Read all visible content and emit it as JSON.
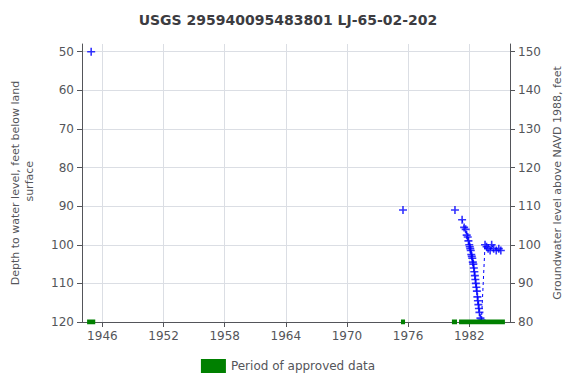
{
  "chart_data": {
    "type": "scatter",
    "title": "USGS 295940095483801 LJ-65-02-202",
    "ylabel": "Depth to water level, feet below land\n surface",
    "y2label": "Groundwater level above NAVD 1988, feet",
    "xlim": [
      1944,
      1986
    ],
    "xticks": [
      1946,
      1952,
      1958,
      1964,
      1970,
      1976,
      1982
    ],
    "ylim": [
      120,
      48
    ],
    "yticks": [
      50,
      60,
      70,
      80,
      90,
      100,
      110,
      120
    ],
    "y2lim": [
      80,
      152
    ],
    "y2ticks": [
      80,
      90,
      100,
      110,
      120,
      130,
      140,
      150
    ],
    "grid": true,
    "legend": "bottom",
    "series": [
      {
        "type": "line",
        "line_style": "dashed",
        "color": "#0000FF",
        "x": [
          1981.3,
          1981.5,
          1981.65,
          1981.75,
          1981.85,
          1981.92,
          1982.0,
          1982.05,
          1982.1,
          1982.15,
          1982.2,
          1982.25,
          1982.3,
          1982.35,
          1982.4,
          1982.45,
          1982.5,
          1982.55,
          1982.6,
          1982.65,
          1982.7,
          1982.75,
          1982.8,
          1982.85,
          1982.9,
          1982.95,
          1983.0,
          1983.1,
          1983.2,
          1983.55,
          1983.7,
          1983.85,
          1984.05,
          1984.2,
          1984.4,
          1984.65,
          1984.9,
          1985.1
        ],
        "values": [
          93.5,
          95.5,
          96.0,
          97.5,
          98.0,
          99.0,
          100.0,
          100.5,
          101.0,
          101.5,
          102.5,
          103.0,
          103.5,
          104.5,
          105.0,
          106.0,
          107.0,
          108.0,
          109.0,
          110.0,
          111.0,
          112.0,
          113.5,
          114.5,
          115.5,
          116.5,
          117.5,
          119.0,
          119.5,
          100.0,
          100.5,
          101.0,
          101.5,
          100.0,
          101.0,
          101.5,
          101.0,
          101.5
        ]
      },
      {
        "type": "scatter",
        "marker": "plus",
        "color": "#0000FF",
        "x": [
          1944.9,
          1975.5,
          1980.6,
          1981.3,
          1981.5,
          1981.65,
          1981.75,
          1981.85,
          1981.92,
          1982.0,
          1982.05,
          1982.1,
          1982.15,
          1982.2,
          1982.25,
          1982.3,
          1982.35,
          1982.4,
          1982.45,
          1982.5,
          1982.55,
          1982.6,
          1982.65,
          1982.7,
          1982.75,
          1982.8,
          1982.85,
          1982.9,
          1982.95,
          1983.0,
          1983.1,
          1983.2,
          1983.55,
          1983.7,
          1983.85,
          1984.05,
          1984.2,
          1984.4,
          1984.65,
          1984.9,
          1985.1
        ],
        "values": [
          50.0,
          91.0,
          91.0,
          93.5,
          95.5,
          96.0,
          97.5,
          98.0,
          99.0,
          100.0,
          100.5,
          101.0,
          101.5,
          102.5,
          103.0,
          103.5,
          104.5,
          105.0,
          106.0,
          107.0,
          108.0,
          109.0,
          110.0,
          111.0,
          112.0,
          113.5,
          114.5,
          115.5,
          116.5,
          117.5,
          119.0,
          119.5,
          100.0,
          100.5,
          101.0,
          101.5,
          100.0,
          101.0,
          101.5,
          101.0,
          101.5
        ]
      },
      {
        "type": "segments",
        "name": "Period of approved data",
        "color": "#008000",
        "x_start": [
          1944.5,
          1975.3,
          1980.3,
          1981.0
        ],
        "x_end": [
          1945.3,
          1975.7,
          1980.8,
          1985.5
        ],
        "values": [
          120,
          120,
          120,
          120
        ]
      }
    ]
  }
}
